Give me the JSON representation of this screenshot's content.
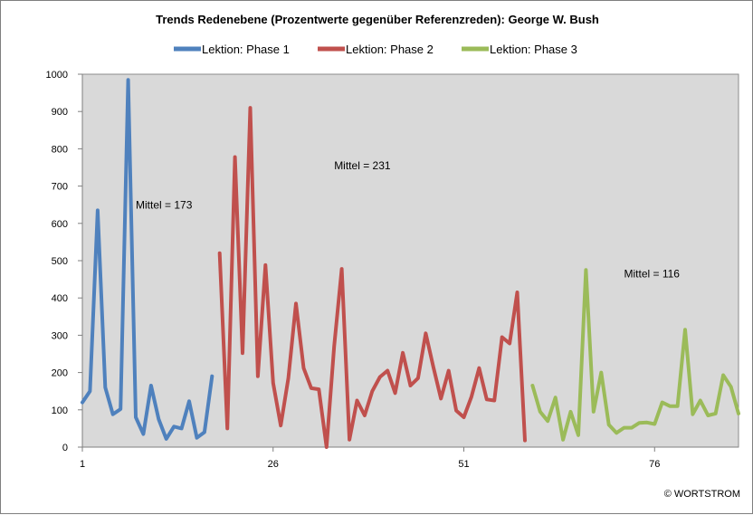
{
  "chart_data": {
    "type": "line",
    "title": "Trends  Redenebene (Prozentwerte gegenüber Referenzreden):  George W. Bush",
    "xlabel": "",
    "ylabel": "",
    "xlim": [
      1,
      87
    ],
    "ylim": [
      0,
      1000
    ],
    "yticks": [
      0,
      100,
      200,
      300,
      400,
      500,
      600,
      700,
      800,
      900,
      1000
    ],
    "xticks": [
      1,
      26,
      51,
      76
    ],
    "grid": "none",
    "plot_background": "#d9d9d9",
    "legend_position": "top",
    "series": [
      {
        "name": "Lektion: Phase 1",
        "color": "#4f81bd",
        "x": [
          1,
          2,
          3,
          4,
          5,
          6,
          7,
          8,
          9,
          10,
          11,
          12,
          13,
          14,
          15,
          16,
          17,
          18
        ],
        "values": [
          120,
          150,
          635,
          160,
          88,
          102,
          985,
          80,
          35,
          165,
          75,
          22,
          55,
          50,
          123,
          25,
          40,
          190
        ]
      },
      {
        "name": "Lektion: Phase 2",
        "color": "#c0504d",
        "x": [
          19,
          20,
          21,
          22,
          23,
          24,
          25,
          26,
          27,
          28,
          29,
          30,
          31,
          32,
          33,
          34,
          35,
          36,
          37,
          38,
          39,
          40,
          41,
          42,
          43,
          44,
          45,
          46,
          47,
          48,
          49,
          50,
          51,
          52,
          53,
          54,
          55,
          56,
          57,
          58,
          59
        ],
        "values": [
          520,
          50,
          778,
          252,
          910,
          190,
          488,
          172,
          58,
          185,
          385,
          212,
          158,
          155,
          0,
          270,
          478,
          20,
          125,
          85,
          150,
          188,
          205,
          145,
          253,
          165,
          185,
          305,
          215,
          130,
          205,
          98,
          80,
          135,
          212,
          128,
          125,
          295,
          278,
          415,
          18
        ]
      },
      {
        "name": "Lektion: Phase 3",
        "color": "#9bbb59",
        "x": [
          60,
          61,
          62,
          63,
          64,
          65,
          66,
          67,
          68,
          69,
          70,
          71,
          72,
          73,
          74,
          75,
          76,
          77,
          78,
          79,
          80,
          81,
          82,
          83,
          84,
          85,
          86,
          87
        ],
        "values": [
          165,
          95,
          70,
          133,
          20,
          95,
          32,
          475,
          95,
          200,
          60,
          38,
          52,
          52,
          65,
          66,
          62,
          120,
          110,
          110,
          315,
          88,
          125,
          85,
          90,
          193,
          162,
          90
        ]
      }
    ],
    "annotations": [
      {
        "text": "Mittel = 173",
        "x": 8,
        "y": 640
      },
      {
        "text": "Mittel = 231",
        "x": 34,
        "y": 745
      },
      {
        "text": "Mittel = 116",
        "x": 72,
        "y": 455
      }
    ],
    "copyright": "© WORTSTROM"
  }
}
